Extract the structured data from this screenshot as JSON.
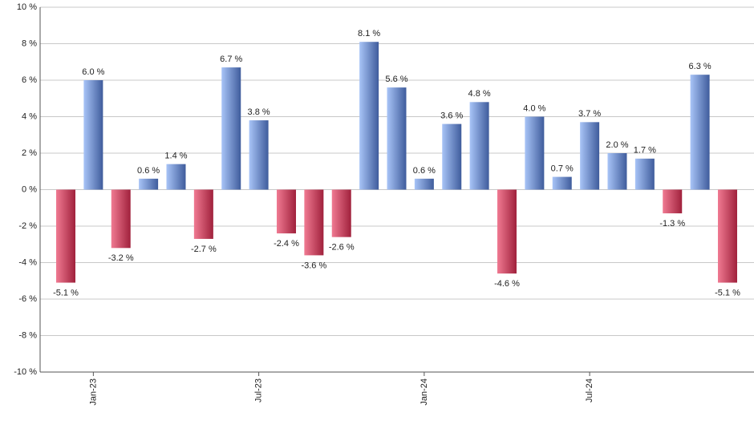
{
  "chart_data": {
    "type": "bar",
    "categories": [
      null,
      "Jan-23",
      null,
      null,
      null,
      null,
      null,
      "Jul-23",
      null,
      null,
      null,
      null,
      null,
      "Jan-24",
      null,
      null,
      null,
      null,
      null,
      "Jul-24",
      null,
      null,
      null,
      null,
      null
    ],
    "values": [
      -5.1,
      6.0,
      -3.2,
      0.6,
      1.4,
      -2.7,
      6.7,
      3.8,
      -2.4,
      -3.6,
      -2.6,
      8.1,
      5.6,
      0.6,
      3.6,
      4.8,
      -4.6,
      4.0,
      0.7,
      3.7,
      2.0,
      1.7,
      -1.3,
      6.3,
      -5.1
    ],
    "value_labels": [
      "-5.1 %",
      "6.0 %",
      "-3.2 %",
      "0.6 %",
      "1.4 %",
      "-2.7 %",
      "6.7 %",
      "3.8 %",
      "-2.4 %",
      "-3.6 %",
      "-2.6 %",
      "8.1 %",
      "5.6 %",
      "0.6 %",
      "3.6 %",
      "4.8 %",
      "-4.6 %",
      "4.0 %",
      "0.7 %",
      "3.7 %",
      "2.0 %",
      "1.7 %",
      "-1.3 %",
      "6.3 %",
      "-5.1 %"
    ],
    "positive_colors": [
      "#a8c4f7",
      "#3f5c9c"
    ],
    "negative_colors": [
      "#f07a92",
      "#a0213c"
    ],
    "ylim": [
      -10,
      10
    ],
    "yticks": [
      {
        "value": -10,
        "label": "-10 %"
      },
      {
        "value": -8,
        "label": "-8 %"
      },
      {
        "value": -6,
        "label": "-6 %"
      },
      {
        "value": -4,
        "label": "-4 %"
      },
      {
        "value": -2,
        "label": "-2 %"
      },
      {
        "value": 0,
        "label": "0 %"
      },
      {
        "value": 2,
        "label": "2 %"
      },
      {
        "value": 4,
        "label": "4 %"
      },
      {
        "value": 6,
        "label": "6 %"
      },
      {
        "value": 8,
        "label": "8 %"
      },
      {
        "value": 10,
        "label": "10 %"
      }
    ],
    "grid": true
  }
}
